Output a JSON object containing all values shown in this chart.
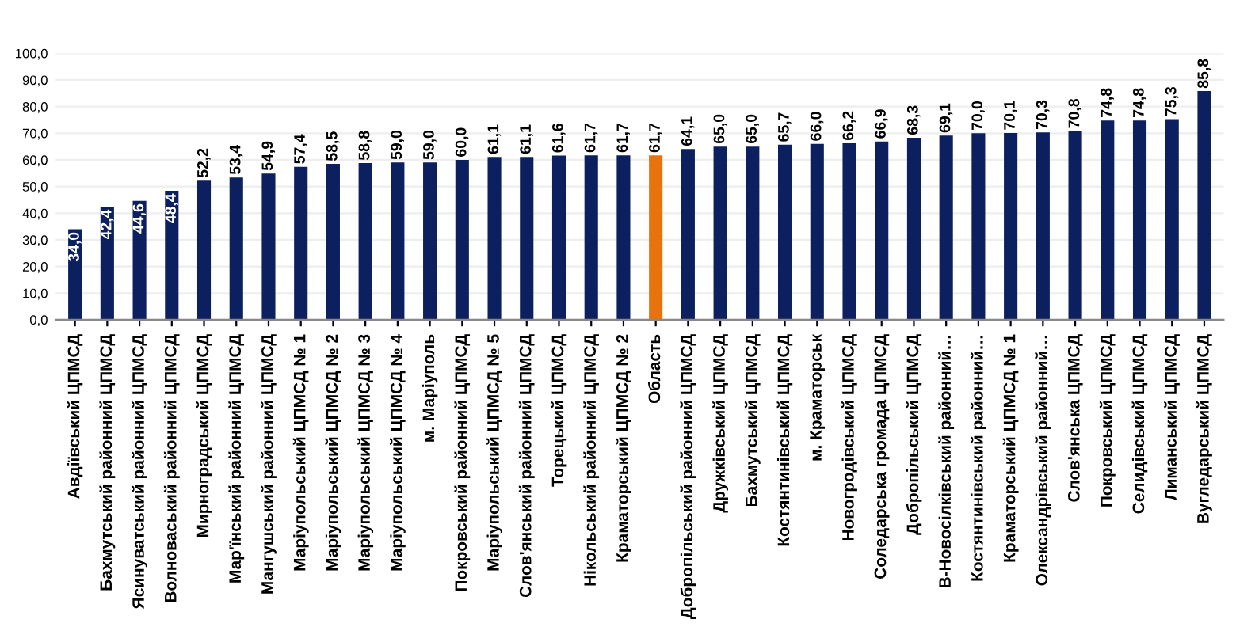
{
  "chart_data": {
    "type": "bar",
    "categories": [
      "Авдіївський ЦПМСД",
      "Бахмутський районний ЦПМСД",
      "Ясинуватський районний ЦПМСД",
      "Волноваський районний ЦПМСД",
      "Мирноградський ЦПМСД",
      "Мар'їнський районний ЦПМСД",
      "Мангушський районний ЦПМСД",
      "Маріупольський ЦПМСД № 1",
      "Маріупольський ЦПМСД № 2",
      "Маріупольський ЦПМСД № 3",
      "Маріупольський ЦПМСД № 4",
      "м. Маріуполь",
      "Покровський районний ЦПМСД",
      "Маріупольський ЦПМСД № 5",
      "Слов'янський районний ЦПМСД",
      "Торецький ЦПМСД",
      "Нікольський районний ЦПМСД",
      "Краматорський ЦПМСД № 2",
      "Область",
      "Добропільський районний ЦПМСД",
      "Дружківський ЦПМСД",
      "Бахмутський ЦПМСД",
      "Костянтинівський ЦПМСД",
      "м. Краматорськ",
      "Новогродівський ЦПМСД",
      "Соледарська громада ЦПМСД",
      "Добропільський ЦПМСД",
      "В-Новосілківський районний…",
      "Костянтинівський районний…",
      "Краматорський ЦПМСД № 1",
      "Олександрівський районний…",
      "Слов'янська ЦПМСД",
      "Покровський ЦПМСД",
      "Селидівський ЦПМСД",
      "Лиманський ЦПМСД",
      "Вугледарський ЦПМСД"
    ],
    "values": [
      34.0,
      42.4,
      44.6,
      48.4,
      52.2,
      53.4,
      54.9,
      57.4,
      58.5,
      58.8,
      59.0,
      59.0,
      60.0,
      61.1,
      61.1,
      61.6,
      61.7,
      61.7,
      61.7,
      64.1,
      65.0,
      65.0,
      65.7,
      66.0,
      66.2,
      66.9,
      68.3,
      69.1,
      70.0,
      70.1,
      70.3,
      70.8,
      74.8,
      74.8,
      75.3,
      85.8
    ],
    "value_labels": [
      "34,0",
      "42,4",
      "44,6",
      "48,4",
      "52,2",
      "53,4",
      "54,9",
      "57,4",
      "58,5",
      "58,8",
      "59,0",
      "59,0",
      "60,0",
      "61,1",
      "61,1",
      "61,6",
      "61,7",
      "61,7",
      "61,7",
      "64,1",
      "65,0",
      "65,0",
      "65,7",
      "66,0",
      "66,2",
      "66,9",
      "68,3",
      "69,1",
      "70,0",
      "70,1",
      "70,3",
      "70,8",
      "74,8",
      "74,8",
      "75,3",
      "85,8"
    ],
    "colors": [
      "#0c1f5e",
      "#0c1f5e",
      "#0c1f5e",
      "#0c1f5e",
      "#0c1f5e",
      "#0c1f5e",
      "#0c1f5e",
      "#0c1f5e",
      "#0c1f5e",
      "#0c1f5e",
      "#0c1f5e",
      "#0c1f5e",
      "#0c1f5e",
      "#0c1f5e",
      "#0c1f5e",
      "#0c1f5e",
      "#0c1f5e",
      "#0c1f5e",
      "#e8720c",
      "#0c1f5e",
      "#0c1f5e",
      "#0c1f5e",
      "#0c1f5e",
      "#0c1f5e",
      "#0c1f5e",
      "#0c1f5e",
      "#0c1f5e",
      "#0c1f5e",
      "#0c1f5e",
      "#0c1f5e",
      "#0c1f5e",
      "#0c1f5e",
      "#0c1f5e",
      "#0c1f5e",
      "#0c1f5e",
      "#0c1f5e"
    ],
    "ylim": [
      0,
      100
    ],
    "yticks": [
      {
        "value": 0,
        "label": "0,0"
      },
      {
        "value": 10,
        "label": "10,0"
      },
      {
        "value": 20,
        "label": "20,0"
      },
      {
        "value": 30,
        "label": "30,0"
      },
      {
        "value": 40,
        "label": "40,0"
      },
      {
        "value": 50,
        "label": "50,0"
      },
      {
        "value": 60,
        "label": "60,0"
      },
      {
        "value": 70,
        "label": "70,0"
      },
      {
        "value": 80,
        "label": "80,0"
      },
      {
        "value": 90,
        "label": "90,0"
      },
      {
        "value": 100,
        "label": "100,0"
      }
    ],
    "grid": "y"
  }
}
